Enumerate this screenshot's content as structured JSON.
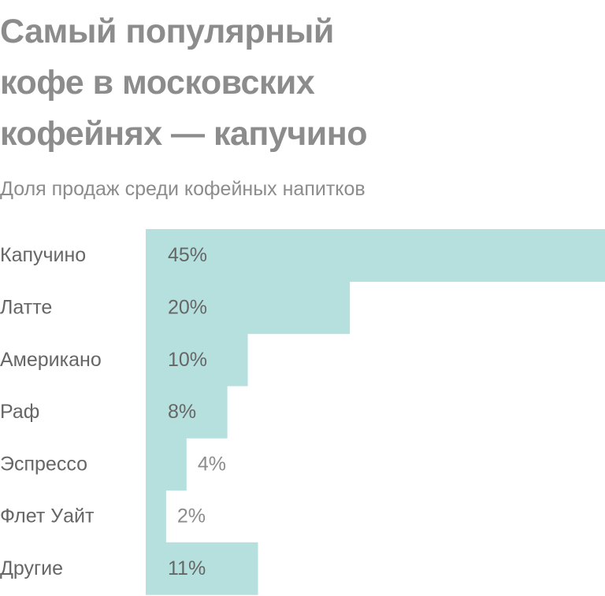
{
  "title_lines": [
    "Самый популярный",
    "кофе в московских",
    "кофейнях — капучино"
  ],
  "subtitle": "Доля продаж среди кофейных напитков",
  "colors": {
    "bar": "#b6e0de",
    "text": "#666666",
    "muted": "#8c8c8c"
  },
  "chart_data": {
    "type": "bar",
    "orientation": "horizontal",
    "title": "Самый популярный кофе в московских кофейнях — капучино",
    "subtitle": "Доля продаж среди кофейных напитков",
    "categories": [
      "Капучино",
      "Латте",
      "Американо",
      "Раф",
      "Эспрессо",
      "Флет Уайт",
      "Другие"
    ],
    "values": [
      45,
      20,
      10,
      8,
      4,
      2,
      11
    ],
    "value_labels": [
      "45%",
      "20%",
      "10%",
      "8%",
      "4%",
      "2%",
      "11%"
    ],
    "unit": "%",
    "xlim": [
      0,
      45
    ],
    "grid": false,
    "legend": "none"
  }
}
